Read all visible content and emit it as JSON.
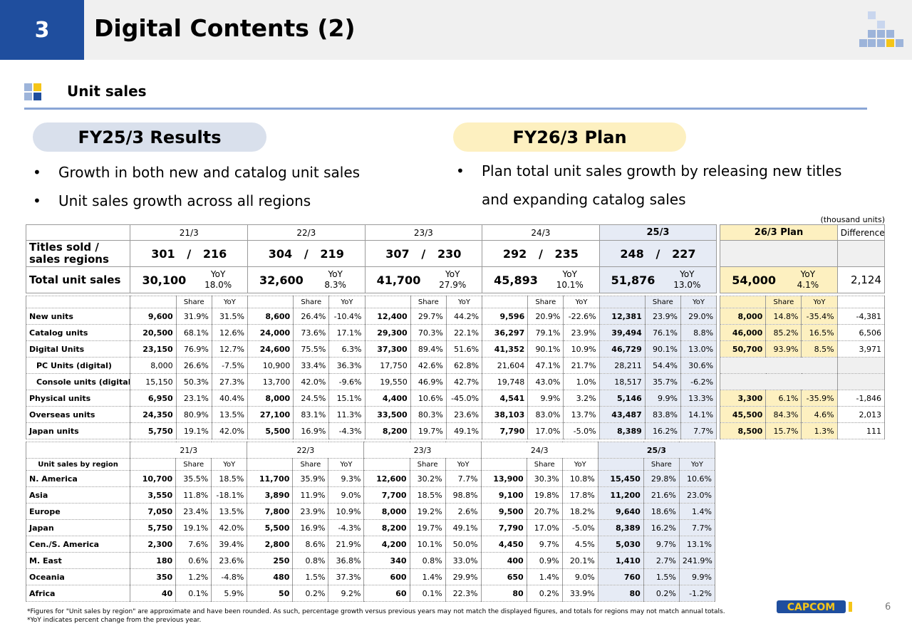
{
  "header": {
    "section_number": "3",
    "title": "Digital Contents (2)"
  },
  "section": {
    "title": "Unit sales"
  },
  "results": {
    "pill": "FY25/3 Results",
    "bullets": [
      "Growth in both new and catalog unit sales",
      "Unit sales growth across all regions"
    ]
  },
  "plan": {
    "pill": "FY26/3 Plan",
    "bullets": [
      "Plan total unit sales growth by releasing new titles",
      "and expanding catalog sales"
    ]
  },
  "units_note": "(thousand units)",
  "summary": {
    "headers": [
      "21/3",
      "22/3",
      "23/3",
      "24/3",
      "25/3",
      "26/3  Plan",
      "Difference"
    ],
    "titles_label": "Titles sold / sales regions",
    "titles": [
      {
        "a": "301",
        "b": "216"
      },
      {
        "a": "304",
        "b": "219"
      },
      {
        "a": "307",
        "b": "230"
      },
      {
        "a": "292",
        "b": "235"
      },
      {
        "a": "248",
        "b": "227"
      }
    ],
    "slash": "/",
    "total_label": "Total unit sales",
    "yoy_label": "YoY",
    "totals": [
      {
        "v": "30,100",
        "yoy": "18.0%"
      },
      {
        "v": "32,600",
        "yoy": "8.3%"
      },
      {
        "v": "41,700",
        "yoy": "27.9%"
      },
      {
        "v": "45,893",
        "yoy": "10.1%"
      },
      {
        "v": "51,876",
        "yoy": "13.0%"
      },
      {
        "v": "54,000",
        "yoy": "4.1%"
      }
    ],
    "total_diff": "2,124"
  },
  "detail": {
    "share": "Share",
    "yoy": "YoY",
    "rows": [
      {
        "label": "New units",
        "cells": [
          [
            "9,600",
            "31.9%",
            "31.5%"
          ],
          [
            "8,600",
            "26.4%",
            "-10.4%"
          ],
          [
            "12,400",
            "29.7%",
            "44.2%"
          ],
          [
            "9,596",
            "20.9%",
            "-22.6%"
          ],
          [
            "12,381",
            "23.9%",
            "29.0%"
          ],
          [
            "8,000",
            "14.8%",
            "-35.4%"
          ]
        ],
        "diff": "-4,381"
      },
      {
        "label": "Catalog units",
        "cells": [
          [
            "20,500",
            "68.1%",
            "12.6%"
          ],
          [
            "24,000",
            "73.6%",
            "17.1%"
          ],
          [
            "29,300",
            "70.3%",
            "22.1%"
          ],
          [
            "36,297",
            "79.1%",
            "23.9%"
          ],
          [
            "39,494",
            "76.1%",
            "8.8%"
          ],
          [
            "46,000",
            "85.2%",
            "16.5%"
          ]
        ],
        "diff": "6,506"
      },
      {
        "label": "Digital Units",
        "cells": [
          [
            "23,150",
            "76.9%",
            "12.7%"
          ],
          [
            "24,600",
            "75.5%",
            "6.3%"
          ],
          [
            "37,300",
            "89.4%",
            "51.6%"
          ],
          [
            "41,352",
            "90.1%",
            "10.9%"
          ],
          [
            "46,729",
            "90.1%",
            "13.0%"
          ],
          [
            "50,700",
            "93.9%",
            "8.5%"
          ]
        ],
        "diff": "3,971"
      },
      {
        "label": "PC Units (digital)",
        "cells": [
          [
            "8,000",
            "26.6%",
            "-7.5%"
          ],
          [
            "10,900",
            "33.4%",
            "36.3%"
          ],
          [
            "17,750",
            "42.6%",
            "62.8%"
          ],
          [
            "21,604",
            "47.1%",
            "21.7%"
          ],
          [
            "28,211",
            "54.4%",
            "30.6%"
          ]
        ],
        "diff": ""
      },
      {
        "label": "Console units (digital)",
        "cells": [
          [
            "15,150",
            "50.3%",
            "27.3%"
          ],
          [
            "13,700",
            "42.0%",
            "-9.6%"
          ],
          [
            "19,550",
            "46.9%",
            "42.7%"
          ],
          [
            "19,748",
            "43.0%",
            "1.0%"
          ],
          [
            "18,517",
            "35.7%",
            "-6.2%"
          ]
        ],
        "diff": ""
      },
      {
        "label": "Physical units",
        "cells": [
          [
            "6,950",
            "23.1%",
            "40.4%"
          ],
          [
            "8,000",
            "24.5%",
            "15.1%"
          ],
          [
            "4,400",
            "10.6%",
            "-45.0%"
          ],
          [
            "4,541",
            "9.9%",
            "3.2%"
          ],
          [
            "5,146",
            "9.9%",
            "13.3%"
          ],
          [
            "3,300",
            "6.1%",
            "-35.9%"
          ]
        ],
        "diff": "-1,846"
      },
      {
        "label": "Overseas units",
        "cells": [
          [
            "24,350",
            "80.9%",
            "13.5%"
          ],
          [
            "27,100",
            "83.1%",
            "11.3%"
          ],
          [
            "33,500",
            "80.3%",
            "23.6%"
          ],
          [
            "38,103",
            "83.0%",
            "13.7%"
          ],
          [
            "43,487",
            "83.8%",
            "14.1%"
          ],
          [
            "45,500",
            "84.3%",
            "4.6%"
          ]
        ],
        "diff": "2,013"
      },
      {
        "label": "Japan units",
        "cells": [
          [
            "5,750",
            "19.1%",
            "42.0%"
          ],
          [
            "5,500",
            "16.9%",
            "-4.3%"
          ],
          [
            "8,200",
            "19.7%",
            "49.1%"
          ],
          [
            "7,790",
            "17.0%",
            "-5.0%"
          ],
          [
            "8,389",
            "16.2%",
            "7.7%"
          ],
          [
            "8,500",
            "15.7%",
            "1.3%"
          ]
        ],
        "diff": "111"
      }
    ]
  },
  "region": {
    "headers": [
      "21/3",
      "22/3",
      "23/3",
      "24/3",
      "25/3"
    ],
    "label_header": "Unit sales by region",
    "rows": [
      {
        "label": "N. America",
        "cells": [
          [
            "10,700",
            "35.5%",
            "18.5%"
          ],
          [
            "11,700",
            "35.9%",
            "9.3%"
          ],
          [
            "12,600",
            "30.2%",
            "7.7%"
          ],
          [
            "13,900",
            "30.3%",
            "10.8%"
          ],
          [
            "15,450",
            "29.8%",
            "10.6%"
          ]
        ]
      },
      {
        "label": "Asia",
        "cells": [
          [
            "3,550",
            "11.8%",
            "-18.1%"
          ],
          [
            "3,890",
            "11.9%",
            "9.0%"
          ],
          [
            "7,700",
            "18.5%",
            "98.8%"
          ],
          [
            "9,100",
            "19.8%",
            "17.8%"
          ],
          [
            "11,200",
            "21.6%",
            "23.0%"
          ]
        ]
      },
      {
        "label": "Europe",
        "cells": [
          [
            "7,050",
            "23.4%",
            "13.5%"
          ],
          [
            "7,800",
            "23.9%",
            "10.9%"
          ],
          [
            "8,000",
            "19.2%",
            "2.6%"
          ],
          [
            "9,500",
            "20.7%",
            "18.2%"
          ],
          [
            "9,640",
            "18.6%",
            "1.4%"
          ]
        ]
      },
      {
        "label": "Japan",
        "cells": [
          [
            "5,750",
            "19.1%",
            "42.0%"
          ],
          [
            "5,500",
            "16.9%",
            "-4.3%"
          ],
          [
            "8,200",
            "19.7%",
            "49.1%"
          ],
          [
            "7,790",
            "17.0%",
            "-5.0%"
          ],
          [
            "8,389",
            "16.2%",
            "7.7%"
          ]
        ]
      },
      {
        "label": "Cen./S. America",
        "cells": [
          [
            "2,300",
            "7.6%",
            "39.4%"
          ],
          [
            "2,800",
            "8.6%",
            "21.9%"
          ],
          [
            "4,200",
            "10.1%",
            "50.0%"
          ],
          [
            "4,450",
            "9.7%",
            "4.5%"
          ],
          [
            "5,030",
            "9.7%",
            "13.1%"
          ]
        ]
      },
      {
        "label": "M. East",
        "cells": [
          [
            "180",
            "0.6%",
            "23.6%"
          ],
          [
            "250",
            "0.8%",
            "36.8%"
          ],
          [
            "340",
            "0.8%",
            "33.0%"
          ],
          [
            "400",
            "0.9%",
            "20.1%"
          ],
          [
            "1,410",
            "2.7%",
            "241.9%"
          ]
        ]
      },
      {
        "label": "Oceania",
        "cells": [
          [
            "350",
            "1.2%",
            "-4.8%"
          ],
          [
            "480",
            "1.5%",
            "37.3%"
          ],
          [
            "600",
            "1.4%",
            "29.9%"
          ],
          [
            "650",
            "1.4%",
            "9.0%"
          ],
          [
            "760",
            "1.5%",
            "9.9%"
          ]
        ]
      },
      {
        "label": "Africa",
        "cells": [
          [
            "40",
            "0.1%",
            "5.9%"
          ],
          [
            "50",
            "0.2%",
            "9.2%"
          ],
          [
            "60",
            "0.1%",
            "22.3%"
          ],
          [
            "80",
            "0.2%",
            "33.9%"
          ],
          [
            "80",
            "0.2%",
            "-1.2%"
          ]
        ]
      }
    ]
  },
  "footnotes": [
    "*Figures for \"Unit sales by region\" are approximate and have been rounded. As such, percentage growth versus previous years may not match the displayed figures, and totals for regions may not match annual totals.",
    "*YoY indicates percent change from the previous year."
  ],
  "logo_text": "CAPCOM",
  "page_number": "6",
  "colors": {
    "brand_blue": "#1f4e9e",
    "fy25_fill": "#e6ebf5",
    "plan_fill": "#fdf0c0",
    "deco_yellow": "#f5c518",
    "deco_blue": "#9db4da"
  }
}
